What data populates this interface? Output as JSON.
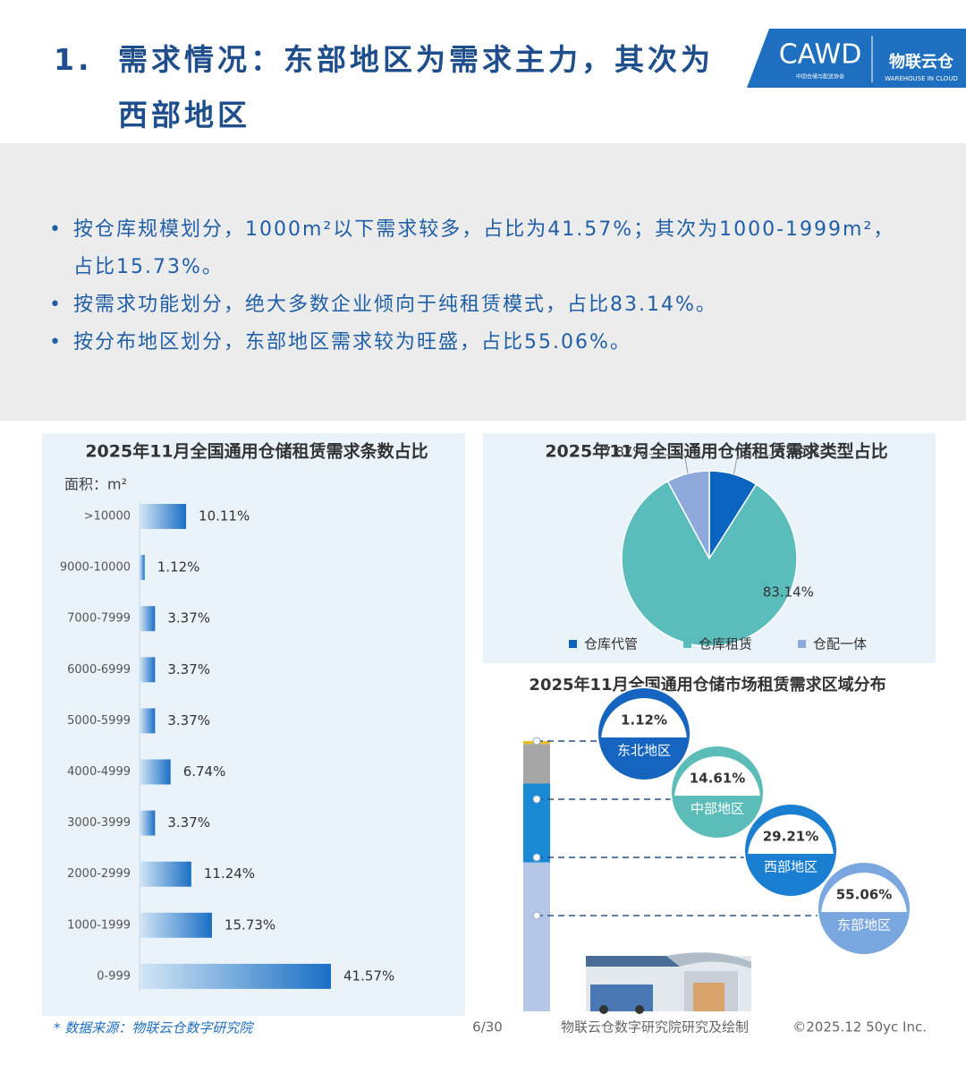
{
  "header": {
    "number": "1.",
    "title": "需求情况：东部地区为需求主力，其次为西部地区"
  },
  "logo": {
    "brand": "CAWD",
    "subtitle": "中国仓储与配送协会",
    "name": "物联云仓",
    "tagline": "WAREHOUSE IN CLOUD"
  },
  "bullets": [
    "按仓库规模划分，1000m²以下需求较多，占比为41.57%；其次为1000-1999m²，占比15.73%。",
    "按需求功能划分，绝大多数企业倾向于纯租赁模式，占比83.14%。",
    "按分布地区划分，东部地区需求较为旺盛，占比55.06%。"
  ],
  "chart_data": [
    {
      "type": "hbar",
      "title": "2025年11月全国通用仓储租赁需求条数占比",
      "y_label": "面积：m²",
      "color": "#1a6fc4",
      "categories": [
        ">10000",
        "9000-10000",
        "7000-7999",
        "6000-6999",
        "5000-5999",
        "4000-4999",
        "3000-3999",
        "2000-2999",
        "1000-1999",
        "0-999"
      ],
      "values": [
        10.11,
        1.12,
        3.37,
        3.37,
        3.37,
        6.74,
        3.37,
        11.24,
        15.73,
        41.57
      ],
      "value_labels": [
        "10.11%",
        "1.12%",
        "3.37%",
        "3.37%",
        "3.37%",
        "6.74%",
        "3.37%",
        "11.24%",
        "15.73%",
        "41.57%"
      ]
    },
    {
      "type": "pie",
      "title": "2025年11月全国通用仓储租赁需求类型占比",
      "categories": [
        "仓库代管",
        "仓库租赁",
        "仓配一体"
      ],
      "values": [
        8.99,
        83.14,
        7.87
      ],
      "value_labels": [
        "8.99%",
        "83.14%",
        "7.87%"
      ],
      "colors": [
        "#0a64c0",
        "#5bbcbc",
        "#8eaadc"
      ]
    },
    {
      "type": "stack",
      "title": "2025年11月全国通用仓储市场租赁需求区域分布",
      "categories": [
        "东北地区",
        "中部地区",
        "西部地区",
        "东部地区"
      ],
      "values": [
        1.12,
        14.61,
        29.21,
        55.06
      ],
      "value_labels": [
        "1.12%",
        "14.61%",
        "29.21%",
        "55.06%"
      ],
      "colors": [
        "#f0c020",
        "#a6a6a6",
        "#1a8ad4",
        "#b4c7e7"
      ],
      "bubble_colors": [
        "#1565c0",
        "#5bbcb8",
        "#1a7fd0",
        "#7aa7e0"
      ]
    }
  ],
  "footer": {
    "source": "* 数据来源：物联云仓数字研究院",
    "page": "6/30",
    "credit": "物联云仓数字研究院研究及绘制",
    "copyright": "©2025.12 50yc Inc."
  }
}
